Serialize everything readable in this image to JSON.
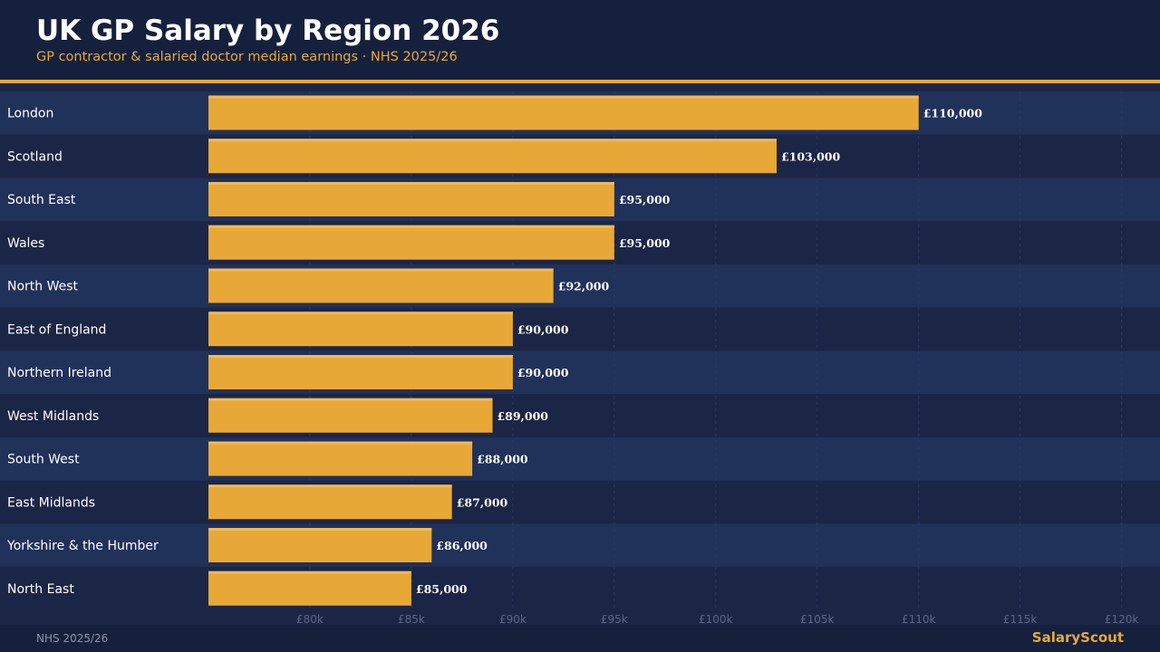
{
  "header": {
    "title": "UK GP Salary by Region 2026",
    "subtitle": "GP contractor & salaried doctor median earnings · NHS 2025/26"
  },
  "footer": {
    "source": "NHS 2025/26",
    "brand": "SalaryScout"
  },
  "colors": {
    "bar": "#e8a838",
    "row_odd": "#20315a",
    "row_even": "#1b2646",
    "label": "#ffffff",
    "tick": "#5b6685"
  },
  "chart_data": {
    "type": "bar",
    "orientation": "horizontal",
    "categories": [
      "London",
      "Scotland",
      "South East",
      "Wales",
      "North West",
      "East of England",
      "Northern Ireland",
      "West Midlands",
      "South West",
      "East Midlands",
      "Yorkshire & the Humber",
      "North East"
    ],
    "values": [
      110000,
      103000,
      95000,
      95000,
      92000,
      90000,
      90000,
      89000,
      88000,
      87000,
      86000,
      85000
    ],
    "value_labels": [
      "£110,000",
      "£103,000",
      "£95,000",
      "£95,000",
      "£92,000",
      "£90,000",
      "£90,000",
      "£89,000",
      "£88,000",
      "£87,000",
      "£86,000",
      "£85,000"
    ],
    "xlim": [
      75000,
      121000
    ],
    "ticks": [
      80000,
      85000,
      90000,
      95000,
      100000,
      105000,
      110000,
      115000,
      120000
    ],
    "tick_labels": [
      "£80k",
      "£85k",
      "£90k",
      "£95k",
      "£100k",
      "£105k",
      "£110k",
      "£115k",
      "£120k"
    ],
    "grid": true,
    "legend": "none"
  }
}
